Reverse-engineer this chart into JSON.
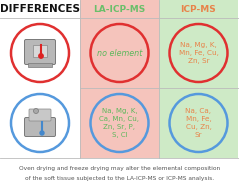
{
  "title": "DIFFERENCES",
  "col1_header": "LA-ICP-MS",
  "col2_header": "ICP-MS",
  "col1_bg": "#f5c4bc",
  "col2_bg": "#ceeac6",
  "col1_header_color": "#6abf6a",
  "col2_header_color": "#e8834a",
  "title_color": "#111111",
  "row1_circle_color": "#e03030",
  "row2_circle_color": "#5599dd",
  "cell_top_left_text": "no element",
  "cell_top_right_text": "Na, Mg, K,\nMn, Fe, Cu,\nZn, Sr",
  "cell_bot_left_text": "Na, Mg, K,\nCa, Mn, Cu,\nZn, Sr, P,\nS, Cl",
  "cell_bot_right_text": "Na, Ca,\nMn, Fe,\nCu, Zn,\nSr",
  "cell_text_color_green": "#5cb85c",
  "cell_text_color_orange": "#e8834a",
  "footer_line1": "Oven drying and freeze drying may alter the elemental composition",
  "footer_line2": "of the soft tissue subjected to the LA-ICP-MS or ICP-MS analysis.",
  "footer_color": "#555555",
  "divider_color": "#bbbbbb",
  "icon_bg": "#c8c8c8",
  "icon_border": "#888888",
  "icon_window": "#e8e8e8",
  "thermo_red": "#dd2222",
  "thermo_blue": "#4488cc"
}
